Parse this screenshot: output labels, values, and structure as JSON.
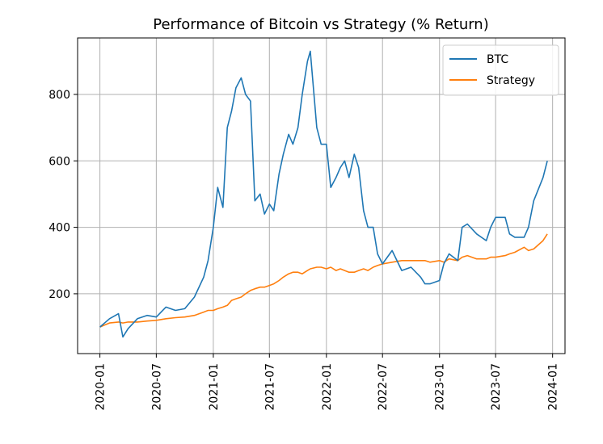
{
  "chart_data": {
    "type": "line",
    "title": "Performance of Bitcoin vs Strategy (% Return)",
    "xlabel": "",
    "ylabel": "",
    "x_ticks": [
      "2020-01",
      "2020-07",
      "2021-01",
      "2021-07",
      "2022-01",
      "2022-07",
      "2023-01",
      "2023-07",
      "2024-01"
    ],
    "y_ticks": [
      200,
      400,
      600,
      800
    ],
    "xlim": [
      "2019-10-21",
      "2024-02-10"
    ],
    "ylim": [
      20,
      970
    ],
    "grid": true,
    "legend_position": "top-right",
    "x": [
      "2020-01-01",
      "2020-02-01",
      "2020-03-01",
      "2020-03-15",
      "2020-04-01",
      "2020-05-01",
      "2020-06-01",
      "2020-07-01",
      "2020-08-01",
      "2020-09-01",
      "2020-10-01",
      "2020-11-01",
      "2020-12-01",
      "2020-12-15",
      "2021-01-01",
      "2021-01-15",
      "2021-02-01",
      "2021-02-15",
      "2021-03-01",
      "2021-03-15",
      "2021-04-01",
      "2021-04-15",
      "2021-05-01",
      "2021-05-15",
      "2021-06-01",
      "2021-06-15",
      "2021-07-01",
      "2021-07-15",
      "2021-08-01",
      "2021-08-15",
      "2021-09-01",
      "2021-09-15",
      "2021-10-01",
      "2021-10-15",
      "2021-11-01",
      "2021-11-10",
      "2021-12-01",
      "2021-12-15",
      "2022-01-01",
      "2022-01-15",
      "2022-02-01",
      "2022-02-15",
      "2022-03-01",
      "2022-03-15",
      "2022-04-01",
      "2022-04-15",
      "2022-05-01",
      "2022-05-15",
      "2022-06-01",
      "2022-06-15",
      "2022-07-01",
      "2022-08-01",
      "2022-09-01",
      "2022-10-01",
      "2022-11-01",
      "2022-11-15",
      "2022-12-01",
      "2023-01-01",
      "2023-01-15",
      "2023-02-01",
      "2023-03-01",
      "2023-03-15",
      "2023-04-01",
      "2023-05-01",
      "2023-06-01",
      "2023-06-15",
      "2023-07-01",
      "2023-08-01",
      "2023-08-15",
      "2023-09-01",
      "2023-10-01",
      "2023-10-15",
      "2023-11-01",
      "2023-12-01",
      "2023-12-15"
    ],
    "series": [
      {
        "name": "BTC",
        "color": "#1f77b4",
        "values": [
          100,
          125,
          140,
          70,
          95,
          125,
          135,
          130,
          160,
          150,
          155,
          190,
          250,
          300,
          400,
          520,
          460,
          700,
          750,
          820,
          850,
          800,
          780,
          480,
          500,
          440,
          470,
          450,
          560,
          620,
          680,
          650,
          700,
          800,
          900,
          930,
          700,
          650,
          650,
          520,
          550,
          580,
          600,
          550,
          620,
          580,
          450,
          400,
          400,
          320,
          290,
          330,
          270,
          280,
          250,
          230,
          230,
          240,
          290,
          320,
          300,
          400,
          410,
          380,
          360,
          400,
          430,
          430,
          380,
          370,
          370,
          400,
          480,
          550,
          600
        ]
      },
      {
        "name": "Strategy",
        "color": "#ff7f0e",
        "values": [
          100,
          112,
          115,
          112,
          115,
          115,
          118,
          120,
          125,
          128,
          130,
          135,
          145,
          150,
          150,
          155,
          160,
          165,
          180,
          185,
          190,
          200,
          210,
          215,
          220,
          220,
          225,
          230,
          240,
          250,
          260,
          265,
          265,
          260,
          270,
          275,
          280,
          280,
          275,
          280,
          270,
          275,
          270,
          265,
          265,
          270,
          275,
          270,
          280,
          285,
          290,
          295,
          300,
          300,
          300,
          300,
          295,
          300,
          295,
          305,
          300,
          310,
          315,
          305,
          305,
          310,
          310,
          315,
          320,
          325,
          340,
          330,
          335,
          360,
          380
        ]
      }
    ]
  }
}
